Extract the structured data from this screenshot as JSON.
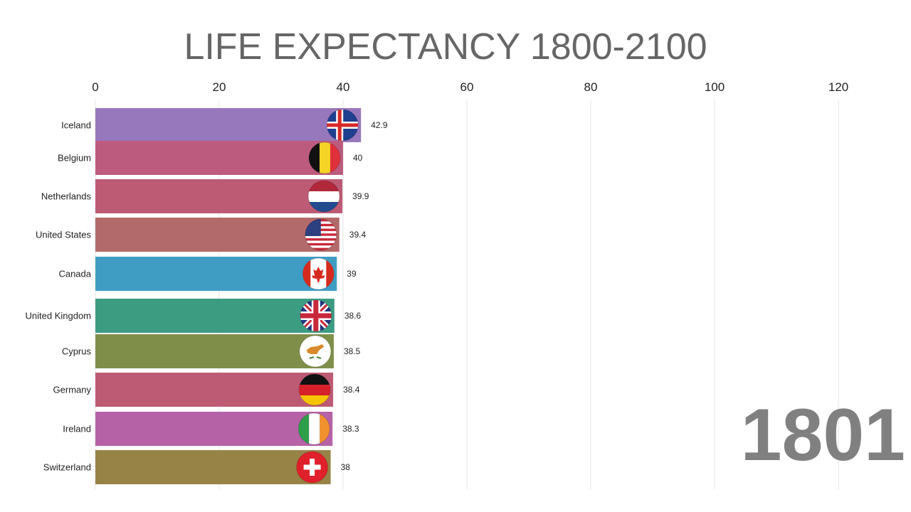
{
  "chart_data": {
    "type": "bar",
    "orientation": "horizontal",
    "title": "LIFE EXPECTANCY 1800-2100",
    "xlim": [
      0,
      120
    ],
    "x_ticks": [
      0,
      20,
      40,
      60,
      80,
      100,
      120
    ],
    "grid": true,
    "categories": [
      "Iceland",
      "Belgium",
      "Netherlands",
      "United States",
      "Canada",
      "United Kingdom",
      "Cyprus",
      "Germany",
      "Ireland",
      "Switzerland"
    ],
    "values": [
      42.9,
      40,
      39.9,
      39.4,
      39,
      38.6,
      38.5,
      38.4,
      38.3,
      38
    ],
    "value_labels": [
      "42.9",
      "40",
      "39.9",
      "39.4",
      "39",
      "38.6",
      "38.5",
      "38.4",
      "38.3",
      "38"
    ],
    "colors": [
      "#9878bd",
      "#bd5b7f",
      "#bd5b74",
      "#b36a6a",
      "#3f9dc4",
      "#3b9c82",
      "#7f8f4a",
      "#bd5b74",
      "#b662a6",
      "#988347"
    ],
    "flag_icons": [
      "iceland-flag-icon",
      "belgium-flag-icon",
      "netherlands-flag-icon",
      "united-states-flag-icon",
      "canada-flag-icon",
      "united-kingdom-flag-icon",
      "cyprus-flag-icon",
      "germany-flag-icon",
      "ireland-flag-icon",
      "switzerland-flag-icon"
    ],
    "year": "1801"
  }
}
